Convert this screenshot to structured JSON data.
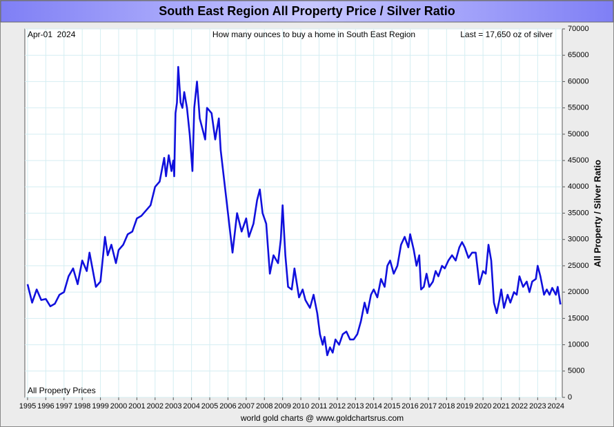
{
  "chart_data": {
    "type": "line",
    "title": "South East Region All Property Price / Silver Ratio",
    "date_label": "Apr-01  2024",
    "subtitle": "How many ounces to buy a home in South East Region",
    "last_label": "Last = 17,650 oz of silver",
    "y_label": "All Property / Silver Ratio",
    "footer": "world gold charts @ www.goldchartsrus.com",
    "x": [
      1995.0,
      1995.25,
      1995.5,
      1995.75,
      1996.0,
      1996.25,
      1996.5,
      1996.75,
      1997.0,
      1997.25,
      1997.5,
      1997.75,
      1998.0,
      1998.25,
      1998.4,
      1998.75,
      1999.0,
      1999.25,
      1999.4,
      1999.6,
      1999.85,
      2000.0,
      2000.25,
      2000.5,
      2000.75,
      2001.0,
      2001.25,
      2001.5,
      2001.75,
      2002.0,
      2002.25,
      2002.5,
      2002.6,
      2002.75,
      2002.9,
      2003.0,
      2003.05,
      2003.12,
      2003.2,
      2003.27,
      2003.4,
      2003.5,
      2003.6,
      2003.75,
      2003.9,
      2004.05,
      2004.15,
      2004.3,
      2004.45,
      2004.6,
      2004.75,
      2004.85,
      2005.1,
      2005.3,
      2005.5,
      2005.6,
      2005.8,
      2006.0,
      2006.25,
      2006.5,
      2006.75,
      2007.0,
      2007.15,
      2007.4,
      2007.6,
      2007.75,
      2007.9,
      2008.1,
      2008.3,
      2008.5,
      2008.75,
      2008.9,
      2009.0,
      2009.15,
      2009.3,
      2009.5,
      2009.65,
      2009.9,
      2010.1,
      2010.25,
      2010.5,
      2010.7,
      2010.9,
      2011.05,
      2011.2,
      2011.3,
      2011.45,
      2011.6,
      2011.75,
      2011.9,
      2012.1,
      2012.3,
      2012.5,
      2012.7,
      2012.9,
      2013.1,
      2013.3,
      2013.5,
      2013.65,
      2013.85,
      2014.0,
      2014.2,
      2014.4,
      2014.6,
      2014.75,
      2014.9,
      2015.1,
      2015.3,
      2015.5,
      2015.7,
      2015.9,
      2016.0,
      2016.2,
      2016.35,
      2016.5,
      2016.6,
      2016.75,
      2016.9,
      2017.05,
      2017.25,
      2017.4,
      2017.55,
      2017.75,
      2017.9,
      2018.1,
      2018.3,
      2018.5,
      2018.7,
      2018.85,
      2019.0,
      2019.2,
      2019.4,
      2019.6,
      2019.8,
      2020.0,
      2020.15,
      2020.3,
      2020.45,
      2020.6,
      2020.75,
      2020.9,
      2021.0,
      2021.15,
      2021.35,
      2021.5,
      2021.7,
      2021.85,
      2022.0,
      2022.2,
      2022.4,
      2022.55,
      2022.7,
      2022.9,
      2023.0,
      2023.15,
      2023.35,
      2023.5,
      2023.65,
      2023.8,
      2024.0,
      2024.1,
      2024.25
    ],
    "series": [
      {
        "name": "All Property Prices",
        "color": "#1010dd",
        "values": [
          21500,
          18000,
          20500,
          18500,
          18700,
          17300,
          17800,
          19500,
          20000,
          23000,
          24500,
          21500,
          26000,
          24000,
          27500,
          21000,
          22000,
          30500,
          27000,
          29000,
          25500,
          28000,
          29000,
          31000,
          31500,
          34000,
          34500,
          35500,
          36500,
          40000,
          41000,
          45500,
          42000,
          46000,
          43000,
          45000,
          42000,
          54000,
          56000,
          62800,
          56000,
          55000,
          58000,
          55000,
          50000,
          43000,
          55000,
          60000,
          53000,
          51000,
          49000,
          55000,
          54000,
          49000,
          53000,
          47000,
          41000,
          35000,
          27500,
          35000,
          31500,
          34000,
          30500,
          33000,
          37500,
          39500,
          35000,
          33000,
          23500,
          27000,
          25500,
          30000,
          36500,
          27000,
          21000,
          20500,
          24500,
          19000,
          20500,
          18500,
          17000,
          19500,
          16000,
          12000,
          10000,
          11500,
          8000,
          9500,
          8500,
          11000,
          10000,
          12000,
          12500,
          11000,
          11000,
          12000,
          14500,
          18000,
          16000,
          19500,
          20500,
          19000,
          22500,
          21000,
          25000,
          26000,
          23500,
          25000,
          29000,
          30500,
          28500,
          31000,
          28000,
          25000,
          27000,
          20500,
          21000,
          23500,
          21000,
          22000,
          24000,
          23000,
          25000,
          24500,
          26000,
          27000,
          26000,
          28500,
          29500,
          28500,
          26500,
          27500,
          27500,
          21500,
          24000,
          23500,
          29000,
          26000,
          18000,
          16000,
          18500,
          20500,
          17000,
          19500,
          18000,
          20000,
          19500,
          23000,
          21000,
          22000,
          20000,
          22000,
          22500,
          25000,
          23000,
          19500,
          20500,
          19500,
          20800,
          19500,
          21000,
          17650
        ]
      }
    ],
    "xlim": [
      1994.85,
      2024.35
    ],
    "xticks": [
      1995,
      1996,
      1997,
      1998,
      1999,
      2000,
      2001,
      2002,
      2003,
      2004,
      2005,
      2006,
      2007,
      2008,
      2009,
      2010,
      2011,
      2012,
      2013,
      2014,
      2015,
      2016,
      2017,
      2018,
      2019,
      2020,
      2021,
      2022,
      2023,
      2024
    ],
    "ylim": [
      0,
      70000
    ],
    "yticks": [
      0,
      5000,
      10000,
      15000,
      20000,
      25000,
      30000,
      35000,
      40000,
      45000,
      50000,
      55000,
      60000,
      65000,
      70000
    ],
    "grid": true
  }
}
